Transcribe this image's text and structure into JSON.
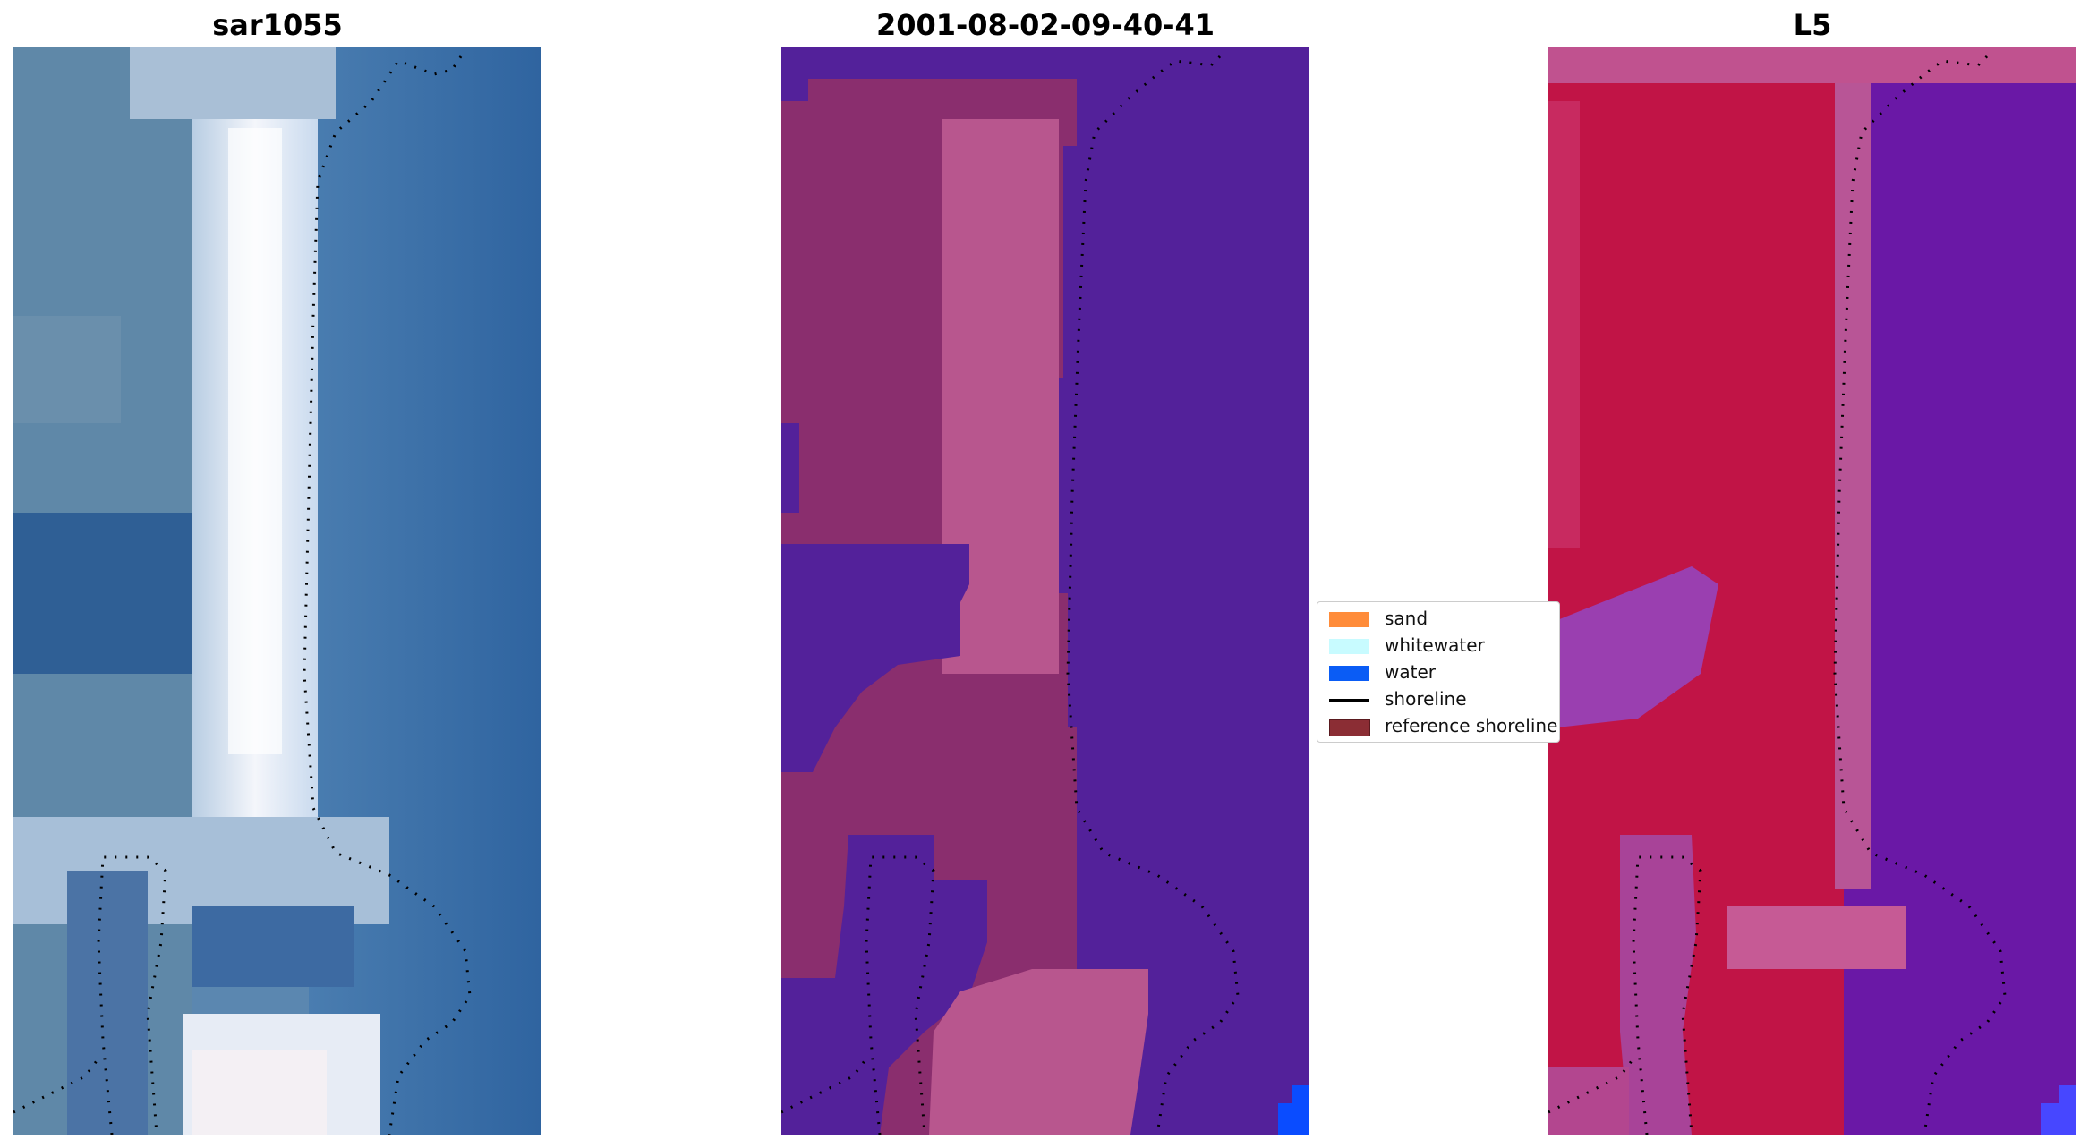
{
  "panels": [
    {
      "title": "sar1055",
      "kind": "rgb"
    },
    {
      "title": "2001-08-02-09-40-41",
      "kind": "classified"
    },
    {
      "title": "L5",
      "kind": "index"
    }
  ],
  "legend": {
    "items": [
      {
        "label": "sand",
        "color": "#ff8c3a",
        "type": "patch"
      },
      {
        "label": "whitewater",
        "color": "#c8fbff",
        "type": "patch"
      },
      {
        "label": "water",
        "color": "#0a5cf5",
        "type": "patch"
      },
      {
        "label": "shoreline",
        "color": "#000000",
        "type": "line"
      },
      {
        "label": "reference shoreline",
        "color": "#8b2d34",
        "type": "patch"
      }
    ]
  },
  "colors": {
    "water_blue": "#3a6aa0",
    "sand_white": "#e9eef6",
    "class_water": "#53219a",
    "class_land": "#8a2e6e",
    "class_land_light": "#b8568e",
    "index_land": "#c11446",
    "index_water": "#6a18a6",
    "corner_blue": "#0a4cff"
  }
}
